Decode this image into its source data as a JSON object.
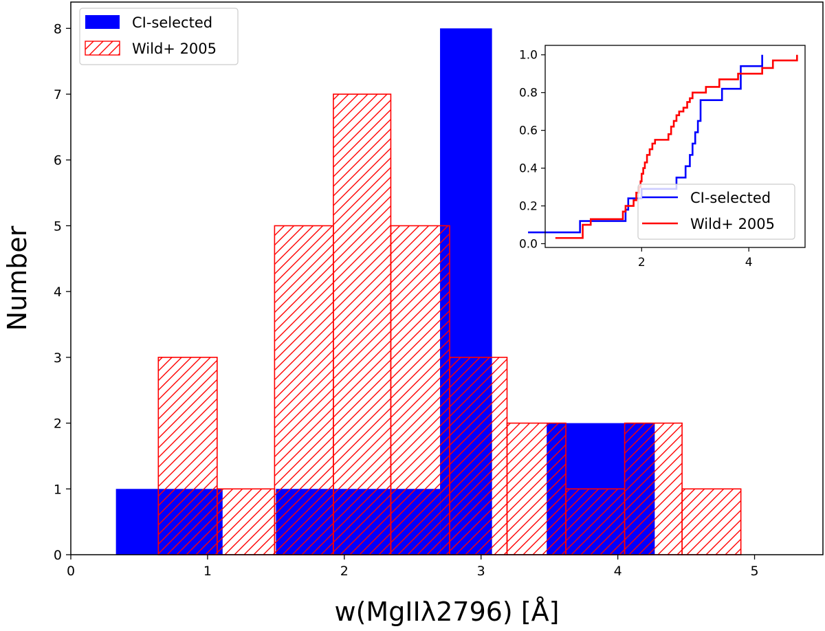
{
  "colors": {
    "ci": "#0000ff",
    "wild": "#ff0000",
    "frame": "#000000",
    "legend_border": "#cccccc"
  },
  "chart_data": [
    {
      "type": "bar",
      "subtype": "histogram",
      "title": "",
      "xlabel": "w(MgIIλ2796) [Å]",
      "ylabel": "Number",
      "xlim": [
        0,
        5.5
      ],
      "ylim": [
        0,
        8.4
      ],
      "xticks": [
        0,
        1,
        2,
        3,
        4,
        5
      ],
      "yticks": [
        0,
        1,
        2,
        3,
        4,
        5,
        6,
        7,
        8
      ],
      "legend": {
        "position": "top-left",
        "entries": [
          "CI-selected",
          "Wild+ 2005"
        ]
      },
      "series": [
        {
          "name": "CI-selected",
          "style": "filled",
          "bin_edges": [
            0.33,
            1.11,
            1.5,
            2.7,
            3.08,
            3.48,
            4.27
          ],
          "counts": [
            1,
            0,
            1,
            8,
            0,
            2
          ]
        },
        {
          "name": "Wild+ 2005",
          "style": "hatched-outline",
          "bin_edges": [
            0.64,
            1.07,
            1.49,
            1.92,
            2.34,
            2.77,
            3.19,
            3.62,
            4.05,
            4.47,
            4.9
          ],
          "counts": [
            3,
            1,
            5,
            7,
            5,
            3,
            2,
            1,
            2,
            1
          ]
        }
      ]
    },
    {
      "type": "line",
      "subtype": "cumulative-step",
      "title": "",
      "xlabel": "",
      "ylabel": "",
      "xlim": [
        0.2,
        5.05
      ],
      "ylim": [
        -0.02,
        1.05
      ],
      "xticks": [
        2,
        4
      ],
      "yticks": [
        "0.0",
        "0.2",
        "0.4",
        "0.6",
        "0.8",
        "1.0"
      ],
      "legend": {
        "position": "center-right",
        "entries": [
          "CI-selected",
          "Wild+ 2005"
        ]
      },
      "series": [
        {
          "name": "CI-selected",
          "x": [
            0.33,
            0.85,
            1.7,
            1.75,
            2.0,
            2.65,
            2.82,
            2.9,
            2.95,
            3.0,
            3.05,
            3.1,
            3.5,
            3.85,
            4.25
          ],
          "y": [
            0.06,
            0.12,
            0.18,
            0.24,
            0.29,
            0.35,
            0.41,
            0.47,
            0.53,
            0.59,
            0.65,
            0.76,
            0.82,
            0.94,
            1.0
          ]
        },
        {
          "name": "Wild+ 2005",
          "x": [
            0.64,
            0.9,
            1.05,
            1.65,
            1.7,
            1.85,
            1.9,
            1.95,
            1.98,
            2.0,
            2.03,
            2.06,
            2.1,
            2.15,
            2.2,
            2.25,
            2.5,
            2.55,
            2.6,
            2.65,
            2.7,
            2.78,
            2.85,
            2.9,
            2.95,
            3.05,
            3.2,
            3.45,
            3.8,
            4.25,
            4.45,
            4.9
          ],
          "y": [
            0.03,
            0.1,
            0.13,
            0.17,
            0.2,
            0.23,
            0.27,
            0.3,
            0.33,
            0.37,
            0.4,
            0.43,
            0.47,
            0.5,
            0.53,
            0.55,
            0.58,
            0.62,
            0.65,
            0.68,
            0.7,
            0.72,
            0.75,
            0.77,
            0.8,
            0.8,
            0.83,
            0.87,
            0.9,
            0.93,
            0.97,
            1.0
          ]
        }
      ]
    }
  ]
}
